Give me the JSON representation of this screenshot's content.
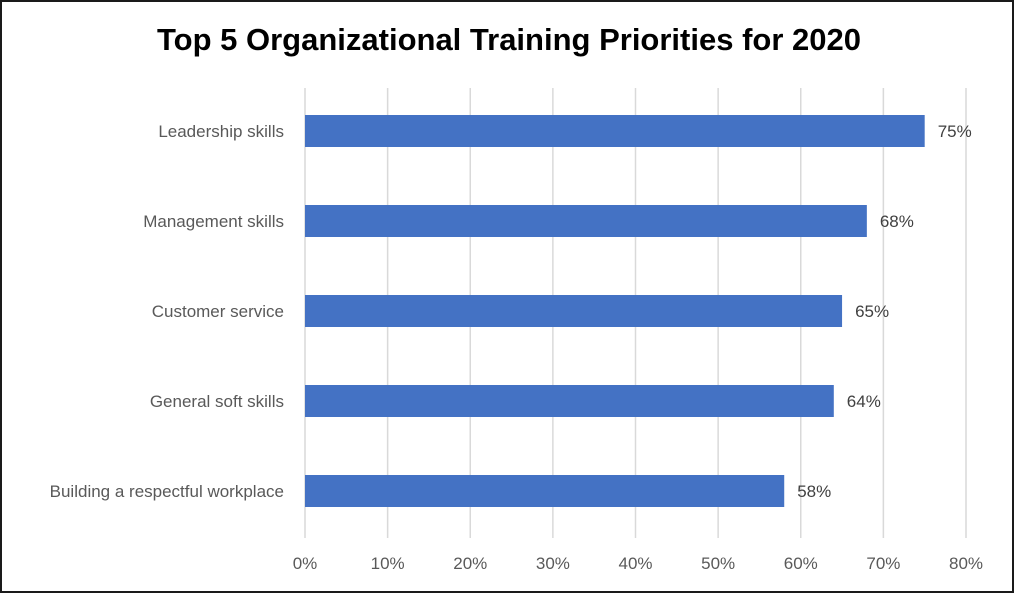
{
  "chart_data": {
    "type": "bar",
    "orientation": "horizontal",
    "title": "Top 5 Organizational Training Priorities for 2020",
    "categories": [
      "Leadership skills",
      "Management skills",
      "Customer service",
      "General soft skills",
      "Building a respectful workplace"
    ],
    "values": [
      75,
      68,
      65,
      64,
      58
    ],
    "value_labels": [
      "75%",
      "68%",
      "65%",
      "64%",
      "58%"
    ],
    "xlim": [
      0,
      80
    ],
    "ticks": [
      0,
      10,
      20,
      30,
      40,
      50,
      60,
      70,
      80
    ],
    "tick_labels": [
      "0%",
      "10%",
      "20%",
      "30%",
      "40%",
      "50%",
      "60%",
      "70%",
      "80%"
    ],
    "grid": "vertical",
    "legend": "none",
    "bar_color": "#4472C4",
    "grid_color": "#D9D9D9"
  }
}
